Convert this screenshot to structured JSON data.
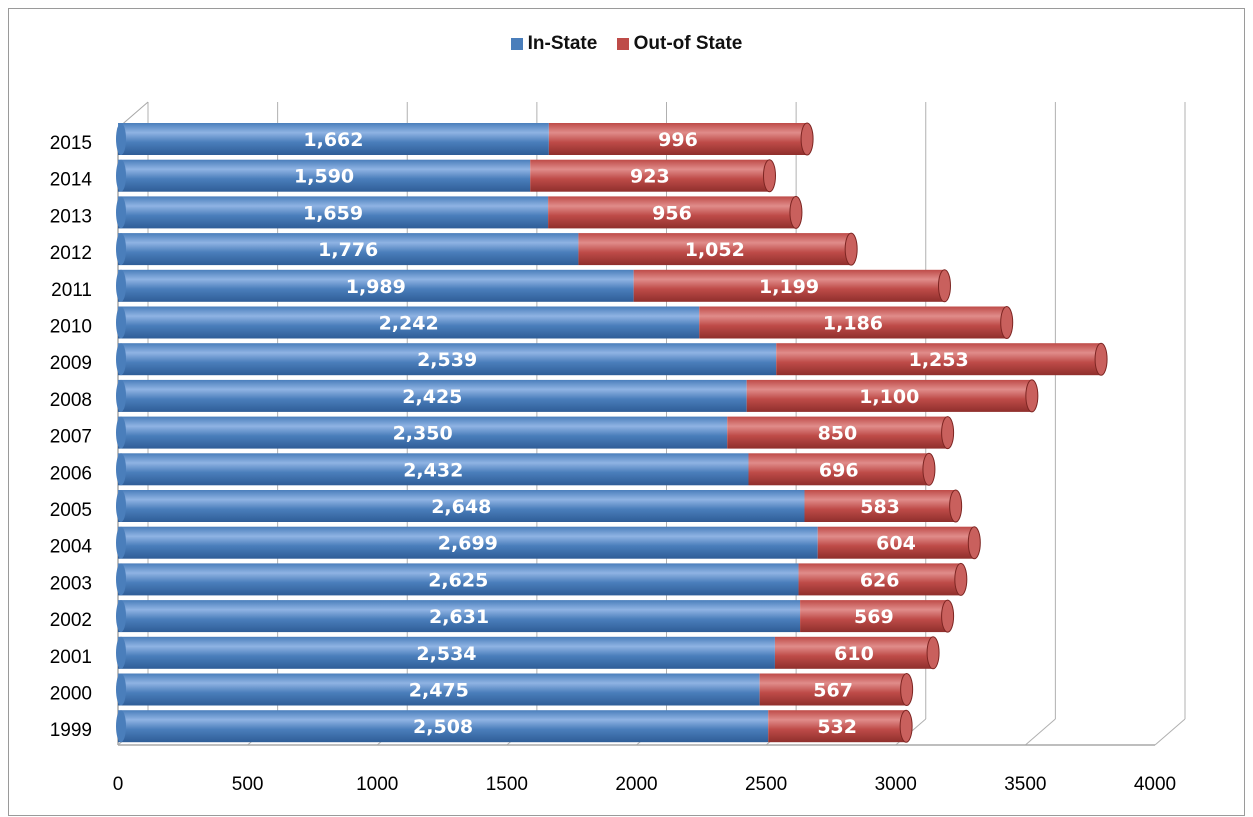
{
  "chart_data": {
    "type": "bar",
    "orientation": "horizontal",
    "stacked": true,
    "categories": [
      "1999",
      "2000",
      "2001",
      "2002",
      "2003",
      "2004",
      "2005",
      "2006",
      "2007",
      "2008",
      "2009",
      "2010",
      "2011",
      "2012",
      "2013",
      "2014",
      "2015"
    ],
    "series": [
      {
        "name": "In-State",
        "color": "#4a7ebb",
        "values": [
          2508,
          2475,
          2534,
          2631,
          2625,
          2699,
          2648,
          2432,
          2350,
          2425,
          2539,
          2242,
          1989,
          1776,
          1659,
          1590,
          1662
        ],
        "labels": [
          "2,508",
          "2,475",
          "2,534",
          "2,631",
          "2,625",
          "2,699",
          "2,648",
          "2,432",
          "2,350",
          "2,425",
          "2,539",
          "2,242",
          "1,989",
          "1,776",
          "1,659",
          "1,590",
          "1,662"
        ]
      },
      {
        "name": "Out-of State",
        "color": "#be4b48",
        "values": [
          532,
          567,
          610,
          569,
          626,
          604,
          583,
          696,
          850,
          1100,
          1253,
          1186,
          1199,
          1052,
          956,
          923,
          996
        ],
        "labels": [
          "532",
          "567",
          "610",
          "569",
          "626",
          "604",
          "583",
          "696",
          "850",
          "1,100",
          "1,253",
          "1,186",
          "1,199",
          "1,052",
          "956",
          "923",
          "996"
        ]
      }
    ],
    "xlim": [
      0,
      4000
    ],
    "xticks": [
      "0",
      "500",
      "1000",
      "1500",
      "2000",
      "2500",
      "3000",
      "3500",
      "4000"
    ],
    "grid": true,
    "legend_position": "top-center",
    "title": "",
    "xlabel": "",
    "ylabel": ""
  }
}
